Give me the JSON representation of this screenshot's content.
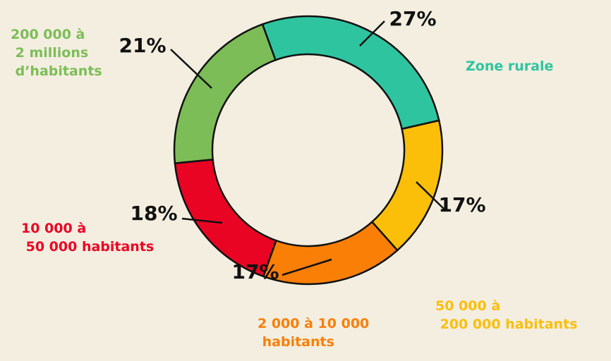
{
  "chart_data": {
    "type": "pie",
    "donut": true,
    "categories": [
      "Zone rurale",
      "50 000 à\n200 000 habitants",
      "2 000 à 10 000\nhabitants",
      "10 000 à\n50 000 habitants",
      "200 000 à\n2 millions\nd’habitants"
    ],
    "values": [
      27,
      17,
      17,
      18,
      21
    ],
    "value_labels": [
      "27%",
      "17%",
      "17%",
      "18%",
      "21%"
    ],
    "colors": [
      "#2ec4a0",
      "#fbbf0a",
      "#f97f06",
      "#ea0423",
      "#7cbd57"
    ]
  }
}
